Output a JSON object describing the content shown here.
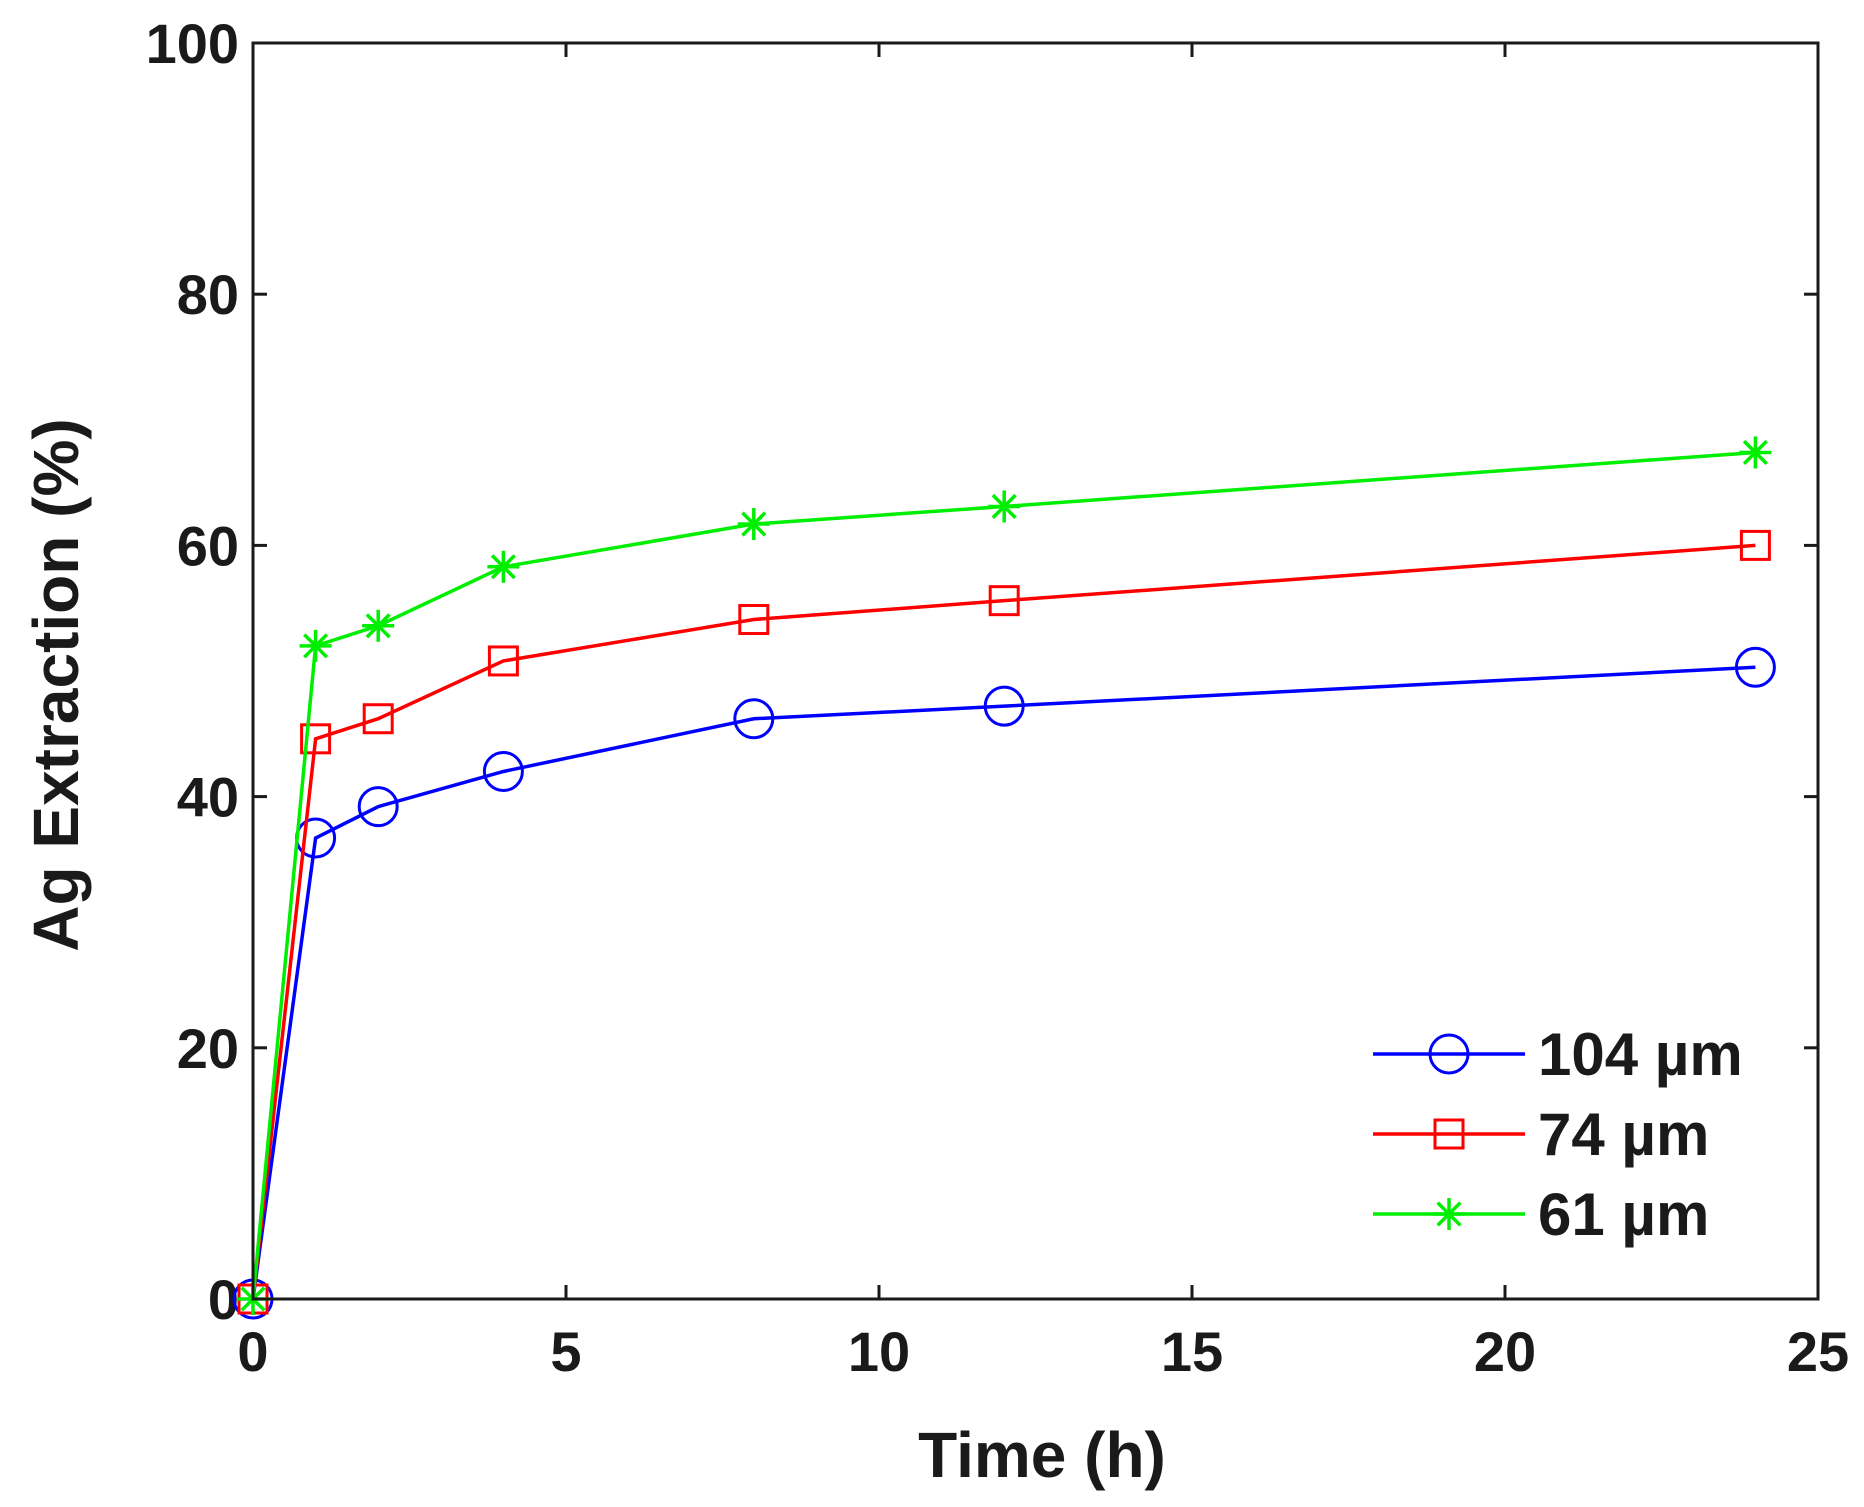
{
  "chart_data": {
    "type": "line",
    "title": "",
    "xlabel": "Time (h)",
    "ylabel": "Ag Extraction (%)",
    "xlim": [
      0,
      25
    ],
    "ylim": [
      0,
      100
    ],
    "xticks": [
      0,
      5,
      10,
      15,
      20,
      25
    ],
    "yticks": [
      0,
      20,
      40,
      60,
      80,
      100
    ],
    "x": [
      0,
      1,
      2,
      4,
      8,
      12,
      24
    ],
    "grid": false,
    "legend_position": "bottom-right",
    "series": [
      {
        "name": "104 µm",
        "color": "#0000ff",
        "marker": "circle",
        "values": [
          0,
          36.7,
          39.2,
          42.0,
          46.2,
          47.2,
          50.3
        ]
      },
      {
        "name": "74 µm",
        "color": "#ff0000",
        "marker": "square",
        "values": [
          0,
          44.6,
          46.2,
          50.8,
          54.1,
          55.6,
          60.0
        ]
      },
      {
        "name": "61 µm",
        "color": "#00ee00",
        "marker": "asterisk",
        "values": [
          0,
          52.0,
          53.6,
          58.3,
          61.7,
          63.1,
          67.4
        ]
      }
    ]
  }
}
